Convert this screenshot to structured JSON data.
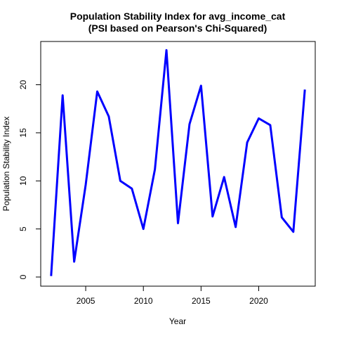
{
  "chart_data": {
    "type": "line",
    "title": "Population Stability Index for avg_income_cat",
    "subtitle": "(PSI based on Pearson's Chi-Squared)",
    "xlabel": "Year",
    "ylabel": "Population Stability Index",
    "xlim": [
      2001.1,
      2024.9
    ],
    "ylim": [
      -0.95,
      24.5
    ],
    "xticks": [
      2005,
      2010,
      2015,
      2020
    ],
    "yticks": [
      0,
      5,
      10,
      15,
      20
    ],
    "xtick_labels": [
      "2005",
      "2010",
      "2015",
      "2020"
    ],
    "ytick_labels": [
      "0",
      "5",
      "10",
      "15",
      "20"
    ],
    "grid": false,
    "legend": "none",
    "series": [
      {
        "color": "#0000FF",
        "x": [
          2002,
          2003,
          2004,
          2005,
          2006,
          2007,
          2008,
          2009,
          2010,
          2011,
          2012,
          2013,
          2014,
          2015,
          2016,
          2017,
          2018,
          2019,
          2020,
          2021,
          2022,
          2023,
          2024
        ],
        "y": [
          0.1,
          18.9,
          1.6,
          9.6,
          19.3,
          16.7,
          10.0,
          9.2,
          5.0,
          11.2,
          23.6,
          5.6,
          15.9,
          19.9,
          6.3,
          10.4,
          5.2,
          14.0,
          16.5,
          15.8,
          6.2,
          4.7,
          19.5
        ]
      }
    ]
  }
}
